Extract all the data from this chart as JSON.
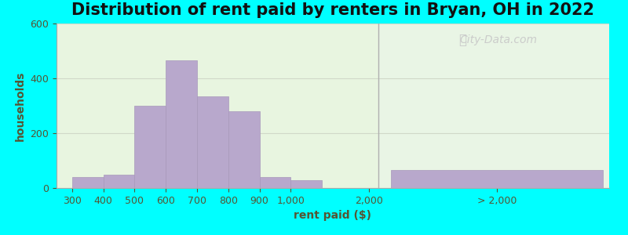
{
  "title": "Distribution of rent paid by renters in Bryan, OH in 2022",
  "xlabel": "rent paid ($)",
  "ylabel": "households",
  "background_outer": "#00FFFF",
  "bar_color": "#b8a8cc",
  "bar_edge_color": "#a898bb",
  "ylim": [
    0,
    600
  ],
  "yticks": [
    0,
    200,
    400,
    600
  ],
  "tick_labels_left": [
    "300",
    "400",
    "500",
    "600",
    "700",
    "800",
    "900",
    "1,000"
  ],
  "values_left": [
    40,
    50,
    300,
    465,
    335,
    280,
    40,
    28
  ],
  "value_gt2000": 65,
  "label_2000": "2,000",
  "label_gt2000": "> 2,000",
  "title_fontsize": 15,
  "axis_label_fontsize": 10,
  "tick_fontsize": 9,
  "watermark_text": "City-Data.com",
  "bg_left_color": "#e8f5e0",
  "bg_right_color": "#eaf5ea",
  "separator_color": "#b0b0b0",
  "grid_color": "#d0d8c8"
}
